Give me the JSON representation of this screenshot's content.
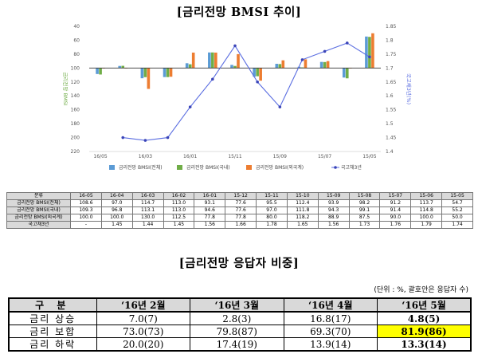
{
  "titles": {
    "bmsi_trend": "[금리전망 BMSI 추이]",
    "response_share": "[금리전망 응답자 비중]"
  },
  "chart_data": {
    "type": "bar",
    "categories": [
      "16/05",
      "16/04",
      "16/03",
      "16/02",
      "16/01",
      "15/12",
      "15/11",
      "15/10",
      "15/09",
      "15/08",
      "15/07",
      "15/06",
      "15/05"
    ],
    "x_tick_labels": [
      "16/05",
      "16/03",
      "16/01",
      "15/11",
      "15/09",
      "15/07",
      "15/05"
    ],
    "series": [
      {
        "name": "금리전망 BMSI(전체)",
        "axis": "left",
        "color": "#5b9bd5",
        "values": [
          108.6,
          97.0,
          114.7,
          113.0,
          93.1,
          77.6,
          95.5,
          112.4,
          93.9,
          98.2,
          91.2,
          113.7,
          54.7
        ]
      },
      {
        "name": "금리전망 BMSI(국내)",
        "axis": "left",
        "color": "#70ad47",
        "values": [
          109.3,
          96.8,
          113.1,
          113.0,
          94.6,
          77.6,
          97.0,
          111.8,
          94.3,
          99.1,
          91.4,
          114.8,
          55.2
        ]
      },
      {
        "name": "금리전망 BMSI(외국계)",
        "axis": "left",
        "color": "#ed7d31",
        "values": [
          100.0,
          100.0,
          130.0,
          112.5,
          77.8,
          77.8,
          80.0,
          118.2,
          88.9,
          87.5,
          90.0,
          100.0,
          50.0
        ]
      },
      {
        "name": "국고채3년",
        "axis": "right",
        "type": "line",
        "color": "#5b6ee1",
        "values": [
          null,
          1.45,
          1.44,
          1.45,
          1.56,
          1.66,
          1.78,
          1.65,
          1.56,
          1.73,
          1.76,
          1.79,
          1.74
        ]
      }
    ],
    "y_left": {
      "ticks": [
        "40",
        "60",
        "80",
        "100",
        "120",
        "140",
        "160",
        "180",
        "200",
        "220"
      ],
      "min": 40,
      "max": 220,
      "inverted": true,
      "base": 100,
      "label": "금리전망 BMSI"
    },
    "y_right": {
      "ticks": [
        "1.85",
        "1.8",
        "1.75",
        "1.7",
        "1.65",
        "1.6",
        "1.55",
        "1.5",
        "1.45",
        "1.4"
      ],
      "min": 1.4,
      "max": 1.85,
      "label": "국고채3년(%)"
    },
    "grid": false,
    "legend": "bottom"
  },
  "bmsi_table": {
    "header": [
      "분류",
      "16-05",
      "16-04",
      "16-03",
      "16-02",
      "16-01",
      "15-12",
      "15-11",
      "15-10",
      "15-09",
      "15-08",
      "15-07",
      "15-06",
      "15-05"
    ],
    "rows": [
      [
        "금리전망 BMSI(전체)",
        "108.6",
        "97.0",
        "114.7",
        "113.0",
        "93.1",
        "77.6",
        "95.5",
        "112.4",
        "93.9",
        "98.2",
        "91.2",
        "113.7",
        "54.7"
      ],
      [
        "금리전망 BMSI(국내)",
        "109.3",
        "96.8",
        "113.1",
        "113.0",
        "94.6",
        "77.6",
        "97.0",
        "111.8",
        "94.3",
        "99.1",
        "91.4",
        "114.8",
        "55.2"
      ],
      [
        "금리전망 BMSI(외국계)",
        "100.0",
        "100.0",
        "130.0",
        "112.5",
        "77.8",
        "77.8",
        "80.0",
        "118.2",
        "88.9",
        "87.5",
        "90.0",
        "100.0",
        "50.0"
      ],
      [
        "국고채3년",
        "-",
        "1.45",
        "1.44",
        "1.45",
        "1.56",
        "1.66",
        "1.78",
        "1.65",
        "1.56",
        "1.73",
        "1.76",
        "1.79",
        "1.74"
      ]
    ]
  },
  "unit_note": "(단위 : %, 괄호안은 응답자 수)",
  "response_table": {
    "header": [
      "구 분",
      "‘16년 2월",
      "‘16년 3월",
      "‘16년 4월",
      "‘16년 5월"
    ],
    "rows": [
      [
        "금리 상승",
        "7.0(7)",
        "2.8(3)",
        "16.8(17)",
        "4.8(5)"
      ],
      [
        "금리 보합",
        "73.0(73)",
        "79.8(87)",
        "69.3(70)",
        "81.9(86)"
      ],
      [
        "금리 하락",
        "20.0(20)",
        "17.4(19)",
        "13.9(14)",
        "13.3(14)"
      ]
    ],
    "highlight_color": "#ffff00",
    "highlight_cell": "rows.1.4"
  }
}
